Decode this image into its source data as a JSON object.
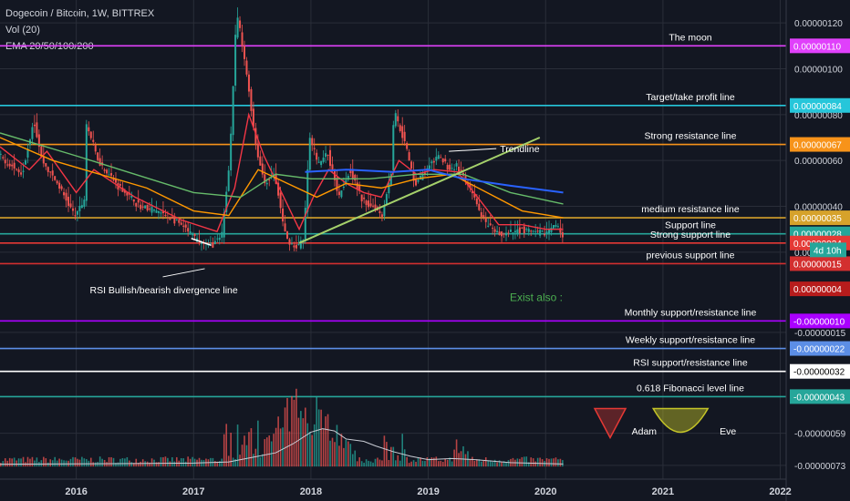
{
  "header": {
    "symbol_title": "Dogecoin / Bitcoin, 1W, BITTREX",
    "volume_indicator": "Vol (20)",
    "ema_indicator": "EMA 20/50/100/200"
  },
  "colors": {
    "background": "#131722",
    "grid": "#2a2e39",
    "axis_text": "#d1d4dc",
    "candle_up": "#26a69a",
    "candle_down": "#ef5350",
    "ema20": "#f23645",
    "ema50": "#ff9800",
    "ema100": "#66bb6a",
    "ema200": "#2962ff",
    "trendline": "#a5d16b",
    "volume_ma": "#c9ccd4"
  },
  "chart_data": {
    "type": "candlestick",
    "title": "Dogecoin / Bitcoin, 1W, BITTREX",
    "x_ticks": [
      "2016",
      "2017",
      "2018",
      "2019",
      "2020",
      "2021",
      "2022"
    ],
    "x_tick_years": [
      2016,
      2017,
      2018,
      2019,
      2020,
      2021,
      2022
    ],
    "x_range": [
      2015.35,
      2022.05
    ],
    "y_ticks": [
      "0.00000120",
      "0.00000100",
      "0.00000080",
      "0.00000060",
      "0.00000040",
      "0.00000020",
      "-0.00000015",
      "-0.00000059",
      "-0.00000073"
    ],
    "y_tick_values": [
      1.2e-06,
      1e-06,
      8e-07,
      6e-07,
      4e-07,
      2e-07,
      -1.5e-07,
      -5.9e-07,
      -7.3e-07
    ],
    "y_range": [
      -7.9e-07,
      1.3e-06
    ],
    "price_path": [
      [
        2015.35,
        6.2e-07
      ],
      [
        2015.55,
        5.4e-07
      ],
      [
        2015.65,
        7.8e-07
      ],
      [
        2015.72,
        6e-07
      ],
      [
        2015.85,
        5e-07
      ],
      [
        2016.0,
        3.6e-07
      ],
      [
        2016.08,
        4.2e-07
      ],
      [
        2016.1,
        7.6e-07
      ],
      [
        2016.2,
        6e-07
      ],
      [
        2016.35,
        5e-07
      ],
      [
        2016.55,
        4e-07
      ],
      [
        2016.7,
        3.8e-07
      ],
      [
        2016.9,
        3.2e-07
      ],
      [
        2017.05,
        2.5e-07
      ],
      [
        2017.15,
        2.3e-07
      ],
      [
        2017.25,
        2.6e-07
      ],
      [
        2017.32,
        6e-07
      ],
      [
        2017.38,
        1.25e-06
      ],
      [
        2017.47,
        9.6e-07
      ],
      [
        2017.55,
        6.4e-07
      ],
      [
        2017.62,
        5e-07
      ],
      [
        2017.7,
        5.4e-07
      ],
      [
        2017.75,
        4e-07
      ],
      [
        2017.8,
        2.6e-07
      ],
      [
        2017.88,
        2.2e-07
      ],
      [
        2017.95,
        2.5e-07
      ],
      [
        2018.0,
        7e-07
      ],
      [
        2018.08,
        5.8e-07
      ],
      [
        2018.15,
        6.4e-07
      ],
      [
        2018.25,
        4.5e-07
      ],
      [
        2018.35,
        5.6e-07
      ],
      [
        2018.45,
        4.2e-07
      ],
      [
        2018.55,
        4e-07
      ],
      [
        2018.62,
        3.6e-07
      ],
      [
        2018.7,
        5.6e-07
      ],
      [
        2018.72,
        8.2e-07
      ],
      [
        2018.8,
        7e-07
      ],
      [
        2018.9,
        5e-07
      ],
      [
        2019.0,
        5.6e-07
      ],
      [
        2019.1,
        6.2e-07
      ],
      [
        2019.2,
        5.6e-07
      ],
      [
        2019.25,
        5.8e-07
      ],
      [
        2019.3,
        5.4e-07
      ],
      [
        2019.4,
        4.4e-07
      ],
      [
        2019.5,
        3.2e-07
      ],
      [
        2019.6,
        2.8e-07
      ],
      [
        2019.7,
        2.8e-07
      ],
      [
        2019.8,
        3e-07
      ],
      [
        2019.9,
        2.9e-07
      ],
      [
        2020.0,
        2.8e-07
      ],
      [
        2020.1,
        3.2e-07
      ],
      [
        2020.15,
        2.8e-07
      ]
    ],
    "ema_series": [
      {
        "name": "EMA 20",
        "color": "#f23645",
        "points": [
          [
            2015.35,
            6.6e-07
          ],
          [
            2015.6,
            5.6e-07
          ],
          [
            2015.75,
            6.4e-07
          ],
          [
            2016.0,
            4.6e-07
          ],
          [
            2016.15,
            5.6e-07
          ],
          [
            2016.5,
            4.4e-07
          ],
          [
            2016.9,
            3.4e-07
          ],
          [
            2017.2,
            2.9e-07
          ],
          [
            2017.35,
            4.8e-07
          ],
          [
            2017.47,
            8e-07
          ],
          [
            2017.6,
            6.2e-07
          ],
          [
            2017.75,
            4.6e-07
          ],
          [
            2017.9,
            3e-07
          ],
          [
            2018.02,
            4.4e-07
          ],
          [
            2018.15,
            5.6e-07
          ],
          [
            2018.3,
            5e-07
          ],
          [
            2018.45,
            4.6e-07
          ],
          [
            2018.6,
            4.4e-07
          ],
          [
            2018.75,
            6e-07
          ],
          [
            2018.9,
            5.4e-07
          ],
          [
            2019.05,
            5.6e-07
          ],
          [
            2019.25,
            5.5e-07
          ],
          [
            2019.45,
            4.2e-07
          ],
          [
            2019.6,
            3.2e-07
          ],
          [
            2019.8,
            3.2e-07
          ],
          [
            2020.0,
            3e-07
          ],
          [
            2020.15,
            3e-07
          ]
        ]
      },
      {
        "name": "EMA 50",
        "color": "#ff9800",
        "points": [
          [
            2015.35,
            7e-07
          ],
          [
            2015.8,
            6e-07
          ],
          [
            2016.2,
            5.4e-07
          ],
          [
            2016.6,
            4.8e-07
          ],
          [
            2017.0,
            3.8e-07
          ],
          [
            2017.3,
            3.6e-07
          ],
          [
            2017.55,
            5.6e-07
          ],
          [
            2017.8,
            5e-07
          ],
          [
            2018.05,
            4.4e-07
          ],
          [
            2018.3,
            5e-07
          ],
          [
            2018.6,
            4.8e-07
          ],
          [
            2018.9,
            5.2e-07
          ],
          [
            2019.2,
            5.4e-07
          ],
          [
            2019.5,
            4.6e-07
          ],
          [
            2019.8,
            3.8e-07
          ],
          [
            2020.15,
            3.5e-07
          ]
        ]
      },
      {
        "name": "EMA 100",
        "color": "#66bb6a",
        "points": [
          [
            2015.35,
            7.2e-07
          ],
          [
            2016.0,
            6.2e-07
          ],
          [
            2016.5,
            5.4e-07
          ],
          [
            2017.0,
            4.6e-07
          ],
          [
            2017.4,
            4.4e-07
          ],
          [
            2017.7,
            5.4e-07
          ],
          [
            2018.0,
            5.2e-07
          ],
          [
            2018.5,
            5.2e-07
          ],
          [
            2018.9,
            5.4e-07
          ],
          [
            2019.3,
            5.4e-07
          ],
          [
            2019.7,
            4.6e-07
          ],
          [
            2020.15,
            4.1e-07
          ]
        ]
      },
      {
        "name": "EMA 200",
        "color": "#2962ff",
        "points": [
          [
            2017.95,
            5.5e-07
          ],
          [
            2018.3,
            5.6e-07
          ],
          [
            2018.7,
            5.5e-07
          ],
          [
            2019.0,
            5.6e-07
          ],
          [
            2019.3,
            5.2e-07
          ],
          [
            2019.7,
            4.9e-07
          ],
          [
            2020.15,
            4.6e-07
          ]
        ]
      }
    ],
    "horizontal_lines": [
      {
        "label": "The moon",
        "value": 1.1e-06,
        "value_label": "0.00000110",
        "color": "#e040fb"
      },
      {
        "label": "Target/take profit line",
        "value": 8.4e-07,
        "value_label": "0.00000084",
        "color": "#26c6da"
      },
      {
        "label": "Strong resistance line",
        "value": 6.7e-07,
        "value_label": "0.00000067",
        "color": "#f7931a"
      },
      {
        "label": "medium resistance line",
        "value": 3.5e-07,
        "value_label": "0.00000035",
        "color": "#d6a22b"
      },
      {
        "label": "Support line",
        "value": 2.8e-07,
        "value_label": "0.00000028",
        "color": "#26a69a"
      },
      {
        "label": "Strong support line",
        "value": 2.4e-07,
        "value_label": "0.00000024",
        "color": "#e53935"
      },
      {
        "label": "previous support line",
        "value": 1.5e-07,
        "value_label": "0.00000015",
        "color": "#d32f2f"
      },
      {
        "label": "Monthly support/resistance line",
        "value": -1e-07,
        "value_label": "-0.00000010",
        "color": "#aa00ff"
      },
      {
        "label": "Weekly support/resistance line",
        "value": -2.2e-07,
        "value_label": "-0.00000022",
        "color": "#5c8ee6"
      },
      {
        "label": "RSI support/resistance line",
        "value": -3.2e-07,
        "value_label": "-0.00000032",
        "color": "#ffffff"
      },
      {
        "label": "0.618 Fibonacci level line",
        "value": -4.3e-07,
        "value_label": "-0.00000043",
        "color": "#26a69a"
      }
    ],
    "price_labels": [
      {
        "text": "0.00000004",
        "value": 4e-08,
        "color": "#b71c1c"
      },
      {
        "text": "4d 10h",
        "value": 2.1e-07,
        "color": "#26a69a"
      }
    ],
    "annotations": [
      {
        "text": "Trendline",
        "x": 2019.3,
        "y": 6.2e-07
      },
      {
        "text": "RSI Bullish/bearish divergence line",
        "x": 2016.1,
        "y": 1.4e-07
      },
      {
        "text": "Exist also :",
        "x": 2019.85,
        "y": 3e-09,
        "color": "#4caf50"
      },
      {
        "text": "Adam",
        "x": 2020.85,
        "y": -5.8e-07
      },
      {
        "text": "Eve",
        "x": 2021.6,
        "y": -5.8e-07
      }
    ],
    "trendline": [
      [
        2017.9,
        2.4e-07
      ],
      [
        2019.95,
        7e-07
      ]
    ],
    "divergence_line": [
      [
        2016.98,
        2.6e-07
      ],
      [
        2017.15,
        2.3e-07
      ]
    ],
    "volume_peak_year": 2017.95,
    "volume_ma_path": [
      [
        2015.35,
        -7.25e-07
      ],
      [
        2016.5,
        -7.22e-07
      ],
      [
        2017.0,
        -7.2e-07
      ],
      [
        2017.3,
        -7.15e-07
      ],
      [
        2017.5,
        -6.95e-07
      ],
      [
        2017.7,
        -6.75e-07
      ],
      [
        2017.85,
        -6.35e-07
      ],
      [
        2018.0,
        -5.85e-07
      ],
      [
        2018.1,
        -5.7e-07
      ],
      [
        2018.2,
        -5.8e-07
      ],
      [
        2018.3,
        -6.15e-07
      ],
      [
        2018.45,
        -6.25e-07
      ],
      [
        2018.55,
        -6.45e-07
      ],
      [
        2018.7,
        -6.7e-07
      ],
      [
        2018.85,
        -6.9e-07
      ],
      [
        2019.0,
        -7.05e-07
      ],
      [
        2019.2,
        -7e-07
      ],
      [
        2019.4,
        -7.05e-07
      ],
      [
        2019.7,
        -7.18e-07
      ],
      [
        2020.0,
        -7.22e-07
      ],
      [
        2020.15,
        -7.24e-07
      ]
    ],
    "grid": true
  }
}
